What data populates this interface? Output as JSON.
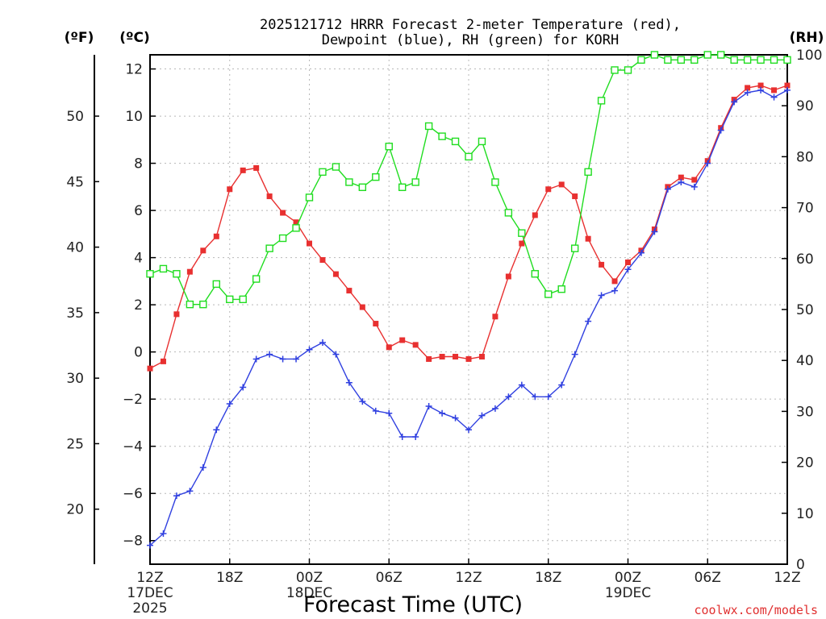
{
  "chart_data": {
    "type": "line",
    "title_line1": "2025121712 HRRR Forecast 2-meter Temperature (red),",
    "title_line2": "Dewpoint (blue), RH (green) for KORH",
    "xlabel": "Forecast Time (UTC)",
    "credit": "coolwx.com/models",
    "units": {
      "fahrenheit": "(ºF)",
      "celsius": "(ºC)",
      "rh": "(RH)"
    },
    "x_start_hour": 0,
    "x_end_hour": 48,
    "x_ticks": [
      {
        "hour": 0,
        "label": "12Z",
        "sub1": "17DEC",
        "sub2": "2025"
      },
      {
        "hour": 6,
        "label": "18Z"
      },
      {
        "hour": 12,
        "label": "00Z",
        "sub1": "18DEC"
      },
      {
        "hour": 18,
        "label": "06Z"
      },
      {
        "hour": 24,
        "label": "12Z"
      },
      {
        "hour": 30,
        "label": "18Z"
      },
      {
        "hour": 36,
        "label": "00Z",
        "sub1": "19DEC"
      },
      {
        "hour": 42,
        "label": "06Z"
      },
      {
        "hour": 48,
        "label": "12Z"
      }
    ],
    "y_celsius": {
      "min": -9.0,
      "max": 12.6,
      "ticks": [
        12,
        10,
        8,
        6,
        4,
        2,
        0,
        -2,
        -4,
        -6,
        -8
      ]
    },
    "y_fahrenheit": {
      "ticks": [
        50,
        45,
        40,
        35,
        30,
        25,
        20
      ]
    },
    "y_rh": {
      "min": 0,
      "max": 100,
      "ticks": [
        100,
        90,
        80,
        70,
        60,
        50,
        40,
        30,
        20,
        10,
        0
      ]
    },
    "grid": true,
    "series": [
      {
        "name": "Temperature",
        "axis": "celsius",
        "color": "#e83030",
        "marker": "filled-square",
        "values": [
          -0.7,
          -0.4,
          1.6,
          3.4,
          4.3,
          4.9,
          6.9,
          7.7,
          7.8,
          6.6,
          5.9,
          5.5,
          4.6,
          3.9,
          3.3,
          2.6,
          1.9,
          1.2,
          0.2,
          0.5,
          0.3,
          -0.3,
          -0.2,
          -0.2,
          -0.3,
          -0.2,
          1.5,
          3.2,
          4.6,
          5.8,
          6.9,
          7.1,
          6.6,
          4.8,
          3.7,
          3.0,
          3.8,
          4.3,
          5.2,
          7.0,
          7.4,
          7.3,
          8.1,
          9.5,
          10.7,
          11.2,
          11.3,
          11.1,
          11.3
        ]
      },
      {
        "name": "Dewpoint",
        "axis": "celsius",
        "color": "#3040e0",
        "marker": "plus",
        "values": [
          -8.2,
          -7.7,
          -6.1,
          -5.9,
          -4.9,
          -3.3,
          -2.2,
          -1.5,
          -0.3,
          -0.1,
          -0.3,
          -0.3,
          0.1,
          0.4,
          -0.1,
          -1.3,
          -2.1,
          -2.5,
          -2.6,
          -3.6,
          -3.6,
          -2.3,
          -2.6,
          -2.8,
          -3.3,
          -2.7,
          -2.4,
          -1.9,
          -1.4,
          -1.9,
          -1.9,
          -1.4,
          -0.1,
          1.3,
          2.4,
          2.6,
          3.5,
          4.2,
          5.1,
          6.9,
          7.2,
          7.0,
          8.0,
          9.4,
          10.6,
          11.0,
          11.1,
          10.8,
          11.1
        ]
      },
      {
        "name": "RH",
        "axis": "rh",
        "color": "#20dd20",
        "marker": "open-square",
        "values": [
          57,
          58,
          57,
          51,
          51,
          55,
          52,
          52,
          56,
          62,
          64,
          66,
          72,
          77,
          78,
          75,
          74,
          76,
          82,
          74,
          75,
          86,
          84,
          83,
          80,
          83,
          75,
          69,
          65,
          57,
          53,
          54,
          62,
          77,
          91,
          97,
          97,
          99,
          100,
          99,
          99,
          99,
          100,
          100,
          99,
          99,
          99,
          99,
          99
        ]
      }
    ]
  }
}
